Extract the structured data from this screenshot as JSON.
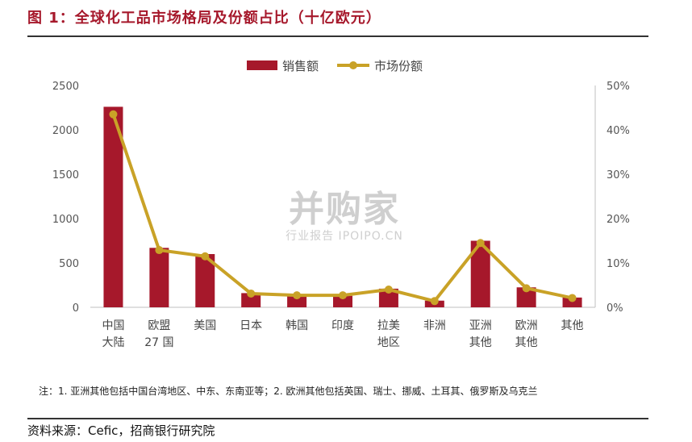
{
  "header": {
    "title": "图 1：全球化工品市场格局及份额占比（十亿欧元）"
  },
  "footer": {
    "note": "注：1. 亚洲其他包括中国台湾地区、中东、东南亚等；2. 欧洲其他包括英国、瑞士、挪威、土耳其、俄罗斯及乌克兰",
    "source": "资料来源：Cefic，招商银行研究院"
  },
  "watermark": {
    "main": "并购家",
    "sub": "行业报告 IPOIPO.CN"
  },
  "colors": {
    "bar": "#a6182b",
    "line": "#c9a227",
    "axis": "#bfbfbf",
    "title": "#a6182b"
  },
  "chart_data": {
    "type": "bar",
    "categories": [
      [
        "中国",
        "大陆"
      ],
      [
        "欧盟",
        "27 国"
      ],
      [
        "美国"
      ],
      [
        "日本"
      ],
      [
        "韩国"
      ],
      [
        "印度"
      ],
      [
        "拉美",
        "地区"
      ],
      [
        "非洲"
      ],
      [
        "亚洲",
        "其他"
      ],
      [
        "欧洲",
        "其他"
      ],
      [
        "其他"
      ]
    ],
    "series": [
      {
        "name": "销售额",
        "type": "bar",
        "axis": "left",
        "values": [
          2260,
          670,
          600,
          160,
          130,
          130,
          210,
          75,
          750,
          225,
          110
        ]
      },
      {
        "name": "市场份额",
        "type": "line",
        "axis": "right",
        "values": [
          43.5,
          12.9,
          11.5,
          3.1,
          2.7,
          2.7,
          4.0,
          1.4,
          14.5,
          4.3,
          2.1
        ]
      }
    ],
    "y_left": {
      "min": 0,
      "max": 2500,
      "ticks": [
        "0",
        "500",
        "1000",
        "1500",
        "2000",
        "2500"
      ]
    },
    "y_right": {
      "min": 0,
      "max": 50,
      "ticks": [
        "0%",
        "10%",
        "20%",
        "30%",
        "40%",
        "50%"
      ]
    },
    "legend": "top-center",
    "grid": false
  }
}
